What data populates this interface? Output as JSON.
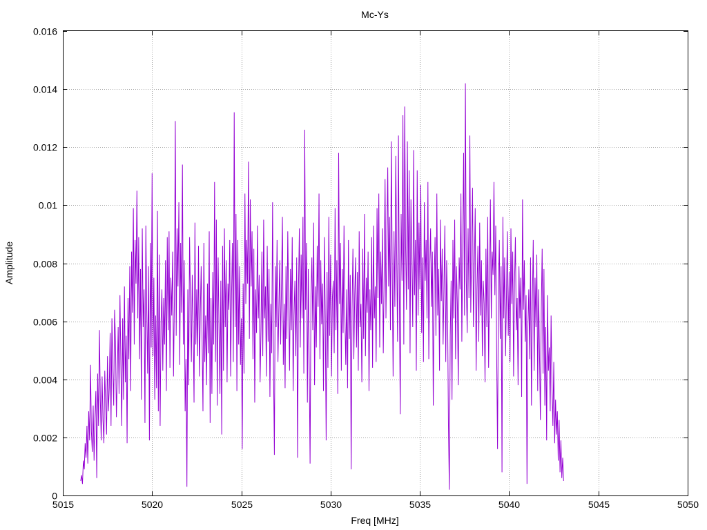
{
  "chart_data": {
    "type": "line",
    "title": "Mc-Ys",
    "xlabel": "Freq [MHz]",
    "ylabel": "Amplitude",
    "xlim": [
      5015,
      5050
    ],
    "ylim": [
      0,
      0.016
    ],
    "x_ticks": [
      5015,
      5020,
      5025,
      5030,
      5035,
      5040,
      5045,
      5050
    ],
    "x_tick_labels": [
      "5015",
      "5020",
      "5025",
      "5030",
      "5035",
      "5040",
      "5045",
      "5050"
    ],
    "y_ticks": [
      0,
      0.002,
      0.004,
      0.006,
      0.008,
      0.01,
      0.012,
      0.014,
      0.016
    ],
    "y_tick_labels": [
      "0",
      "0.002",
      "0.004",
      "0.006",
      "0.008",
      "0.01",
      "0.012",
      "0.014",
      "0.016"
    ],
    "grid": true,
    "series_color": "#9400d3",
    "series": [
      {
        "x_start": 5016.0,
        "x_step": 0.05,
        "values": [
          0.0005,
          0.0007,
          0.0004,
          0.0012,
          0.0009,
          0.0018,
          0.0013,
          0.0024,
          0.0011,
          0.0029,
          0.0019,
          0.0045,
          0.0022,
          0.0015,
          0.0031,
          0.0012,
          0.0027,
          0.0036,
          0.0006,
          0.0042,
          0.0024,
          0.0057,
          0.0033,
          0.0019,
          0.0041,
          0.0026,
          0.0018,
          0.0043,
          0.0031,
          0.0021,
          0.0048,
          0.0029,
          0.0037,
          0.0056,
          0.0024,
          0.0061,
          0.0044,
          0.0031,
          0.0064,
          0.0053,
          0.0027,
          0.0041,
          0.0058,
          0.0035,
          0.0069,
          0.0046,
          0.0024,
          0.0061,
          0.0033,
          0.0072,
          0.0039,
          0.0055,
          0.0018,
          0.0068,
          0.0047,
          0.0079,
          0.0036,
          0.0084,
          0.0063,
          0.0099,
          0.0052,
          0.0088,
          0.0073,
          0.0105,
          0.0061,
          0.0089,
          0.0047,
          0.0078,
          0.0033,
          0.0092,
          0.0058,
          0.0071,
          0.0025,
          0.0093,
          0.0064,
          0.0042,
          0.0079,
          0.0019,
          0.0087,
          0.0051,
          0.0111,
          0.0048,
          0.0075,
          0.0033,
          0.0062,
          0.0037,
          0.0098,
          0.0029,
          0.0083,
          0.0024,
          0.0059,
          0.0071,
          0.0043,
          0.0068,
          0.0052,
          0.0081,
          0.0036,
          0.0089,
          0.0057,
          0.0091,
          0.0044,
          0.0075,
          0.0062,
          0.0084,
          0.0041,
          0.0068,
          0.0129,
          0.0055,
          0.0092,
          0.0072,
          0.0101,
          0.0045,
          0.0087,
          0.0063,
          0.0114,
          0.0052,
          0.0081,
          0.0029,
          0.0047,
          0.0003,
          0.0071,
          0.0038,
          0.0089,
          0.0066,
          0.0046,
          0.0076,
          0.0058,
          0.0032,
          0.0094,
          0.0052,
          0.0071,
          0.0048,
          0.0086,
          0.0041,
          0.0063,
          0.0079,
          0.0054,
          0.0029,
          0.0087,
          0.0046,
          0.0062,
          0.0038,
          0.0073,
          0.0049,
          0.0091,
          0.0025,
          0.0068,
          0.0035,
          0.0077,
          0.0052,
          0.0108,
          0.0046,
          0.0095,
          0.0031,
          0.0082,
          0.0057,
          0.0035,
          0.0074,
          0.0021,
          0.0086,
          0.0043,
          0.0092,
          0.0058,
          0.0081,
          0.0039,
          0.0073,
          0.0064,
          0.0088,
          0.0041,
          0.0069,
          0.0087,
          0.0046,
          0.0132,
          0.0058,
          0.0097,
          0.0036,
          0.0088,
          0.0052,
          0.0079,
          0.0045,
          0.0061,
          0.0016,
          0.0073,
          0.0042,
          0.0104,
          0.0066,
          0.0088,
          0.0073,
          0.0115,
          0.0054,
          0.0102,
          0.0072,
          0.0091,
          0.0047,
          0.0085,
          0.0032,
          0.0071,
          0.0056,
          0.0093,
          0.0061,
          0.0076,
          0.0039,
          0.0057,
          0.0084,
          0.0048,
          0.0095,
          0.0061,
          0.0072,
          0.0041,
          0.0086,
          0.0053,
          0.0078,
          0.0034,
          0.0066,
          0.0049,
          0.0101,
          0.0045,
          0.0014,
          0.0079,
          0.0058,
          0.0088,
          0.0046,
          0.0064,
          0.0081,
          0.0052,
          0.0073,
          0.0096,
          0.0045,
          0.0066,
          0.0037,
          0.0079,
          0.0054,
          0.0091,
          0.0066,
          0.0043,
          0.0078,
          0.0057,
          0.0089,
          0.0036,
          0.0062,
          0.0074,
          0.0048,
          0.0082,
          0.0013,
          0.0071,
          0.0092,
          0.0051,
          0.0083,
          0.0061,
          0.0096,
          0.0042,
          0.0126,
          0.0064,
          0.0087,
          0.0032,
          0.0078,
          0.0045,
          0.0011,
          0.0069,
          0.0082,
          0.0057,
          0.0094,
          0.0038,
          0.0072,
          0.0051,
          0.0086,
          0.0065,
          0.0104,
          0.0047,
          0.0081,
          0.0059,
          0.0073,
          0.0036,
          0.0089,
          0.0062,
          0.0019,
          0.0077,
          0.0044,
          0.0096,
          0.0055,
          0.0083,
          0.0041,
          0.0068,
          0.0074,
          0.0049,
          0.0099,
          0.0057,
          0.0081,
          0.0035,
          0.0118,
          0.0066,
          0.0087,
          0.0043,
          0.0078,
          0.0056,
          0.0093,
          0.0062,
          0.0045,
          0.0071,
          0.0037,
          0.0088,
          0.0054,
          0.0076,
          0.0009,
          0.0064,
          0.0085,
          0.0047,
          0.0069,
          0.0082,
          0.0051,
          0.0077,
          0.0043,
          0.0091,
          0.0058,
          0.0066,
          0.0039,
          0.0085,
          0.0054,
          0.0097,
          0.0048,
          0.0075,
          0.0063,
          0.0084,
          0.0036,
          0.0071,
          0.0057,
          0.0089,
          0.0044,
          0.0093,
          0.0061,
          0.0072,
          0.0046,
          0.0099,
          0.0068,
          0.0104,
          0.0051,
          0.0084,
          0.0066,
          0.0092,
          0.0049,
          0.0076,
          0.0109,
          0.0061,
          0.0087,
          0.0113,
          0.0072,
          0.0096,
          0.0057,
          0.0122,
          0.0079,
          0.0041,
          0.0091,
          0.0065,
          0.0117,
          0.0083,
          0.0053,
          0.0124,
          0.0069,
          0.0028,
          0.0097,
          0.0074,
          0.0131,
          0.0052,
          0.0134,
          0.0086,
          0.0064,
          0.0122,
          0.0071,
          0.0112,
          0.0049,
          0.0102,
          0.0082,
          0.0058,
          0.0119,
          0.0069,
          0.0088,
          0.0043,
          0.0112,
          0.0062,
          0.0094,
          0.0071,
          0.0107,
          0.0056,
          0.0082,
          0.0046,
          0.0101,
          0.0074,
          0.0088,
          0.0061,
          0.0108,
          0.0047,
          0.0079,
          0.0092,
          0.0065,
          0.0084,
          0.0031,
          0.0073,
          0.0089,
          0.0055,
          0.0104,
          0.0062,
          0.0078,
          0.0043,
          0.0095,
          0.0067,
          0.0085,
          0.0052,
          0.0072,
          0.0093,
          0.0046,
          0.0081,
          0.0064,
          0.0024,
          0.0002,
          0.0055,
          0.0074,
          0.0033,
          0.0088,
          0.0061,
          0.0095,
          0.0047,
          0.0079,
          0.0066,
          0.0038,
          0.0082,
          0.0071,
          0.0104,
          0.0053,
          0.0086,
          0.0118,
          0.0062,
          0.0142,
          0.0074,
          0.0056,
          0.0092,
          0.0068,
          0.0124,
          0.0063,
          0.0084,
          0.0106,
          0.0058,
          0.0079,
          0.0099,
          0.0043,
          0.0071,
          0.0086,
          0.0053,
          0.0094,
          0.0062,
          0.0081,
          0.0048,
          0.0074,
          0.0066,
          0.0039,
          0.0085,
          0.0058,
          0.0096,
          0.0044,
          0.0071,
          0.0102,
          0.0061,
          0.0084,
          0.0076,
          0.0108,
          0.0069,
          0.0093,
          0.0049,
          0.0016,
          0.0072,
          0.0088,
          0.0054,
          0.0079,
          0.0008,
          0.0096,
          0.0061,
          0.0082,
          0.0048,
          0.0069,
          0.0091,
          0.0055,
          0.0077,
          0.0046,
          0.0092,
          0.0066,
          0.0084,
          0.0041,
          0.0073,
          0.0089,
          0.0057,
          0.0068,
          0.0038,
          0.0079,
          0.0061,
          0.0075,
          0.0034,
          0.0102,
          0.0064,
          0.0081,
          0.0053,
          0.0069,
          0.0004,
          0.0058,
          0.0071,
          0.0047,
          0.0082,
          0.0031,
          0.0067,
          0.0088,
          0.0043,
          0.0075,
          0.0058,
          0.0083,
          0.0036,
          0.0071,
          0.0049,
          0.0026,
          0.0064,
          0.0085,
          0.0042,
          0.0078,
          0.0031,
          0.0058,
          0.0019,
          0.0069,
          0.0043,
          0.0051,
          0.0029,
          0.0062,
          0.0037,
          0.0024,
          0.0046,
          0.0018,
          0.0033,
          0.0021,
          0.0029,
          0.0012,
          0.0026,
          0.0008,
          0.0019,
          0.0006,
          0.0013,
          0.0005
        ]
      }
    ]
  }
}
